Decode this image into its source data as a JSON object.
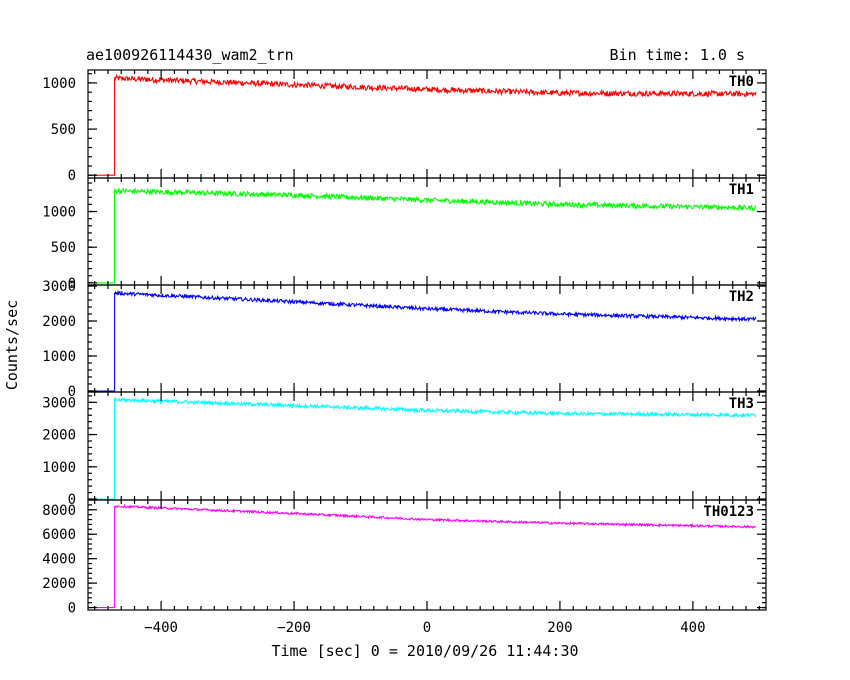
{
  "header": {
    "title": "ae100926114430_wam2_trn",
    "bin_time": "Bin time: 1.0 s"
  },
  "chart_data": {
    "type": "line",
    "title": "ae100926114430_wam2_trn",
    "subtitle": "Bin time: 1.0 s",
    "xlabel": "Time [sec] 0 = 2010/09/26 11:44:30",
    "ylabel": "Counts/sec",
    "xlim": [
      -510,
      510
    ],
    "xticks": [
      -400,
      -200,
      0,
      200,
      400
    ],
    "xtick_labels": [
      "−400",
      "−200",
      "0",
      "200",
      "400"
    ],
    "onset_x": -470,
    "series_x_end": 495,
    "panels": [
      {
        "name": "TH0",
        "color": "#ff0000",
        "ylim": [
          -30,
          1140
        ],
        "yticks": [
          0,
          500,
          1000
        ],
        "ytick_labels": [
          "0",
          "500",
          "1000"
        ],
        "pre_onset": 0,
        "points": [
          [
            -470,
            1050
          ],
          [
            -200,
            980
          ],
          [
            0,
            930
          ],
          [
            200,
            890
          ],
          [
            495,
            880
          ]
        ],
        "noise": 30
      },
      {
        "name": "TH1",
        "color": "#00ff00",
        "ylim": [
          -30,
          1470
        ],
        "yticks": [
          0,
          500,
          1000
        ],
        "ytick_labels": [
          "0",
          "500",
          "1000"
        ],
        "pre_onset": 0,
        "points": [
          [
            -470,
            1290
          ],
          [
            -200,
            1230
          ],
          [
            0,
            1160
          ],
          [
            200,
            1100
          ],
          [
            495,
            1050
          ]
        ],
        "noise": 35
      },
      {
        "name": "TH2",
        "color": "#0000ff",
        "ylim": [
          -30,
          3030
        ],
        "yticks": [
          0,
          1000,
          2000,
          3000
        ],
        "ytick_labels": [
          "0",
          "1000",
          "2000",
          "3000"
        ],
        "pre_onset": 0,
        "points": [
          [
            -470,
            2800
          ],
          [
            -200,
            2550
          ],
          [
            0,
            2350
          ],
          [
            200,
            2200
          ],
          [
            495,
            2050
          ]
        ],
        "noise": 50
      },
      {
        "name": "TH3",
        "color": "#00ffff",
        "ylim": [
          -30,
          3320
        ],
        "yticks": [
          0,
          1000,
          2000,
          3000
        ],
        "ytick_labels": [
          "0",
          "1000",
          "2000",
          "3000"
        ],
        "pre_onset": 0,
        "points": [
          [
            -470,
            3080
          ],
          [
            -200,
            2900
          ],
          [
            0,
            2750
          ],
          [
            200,
            2650
          ],
          [
            495,
            2600
          ]
        ],
        "noise": 55
      },
      {
        "name": "TH0123",
        "color": "#ff00ff",
        "ylim": [
          -200,
          8800
        ],
        "yticks": [
          0,
          2000,
          4000,
          6000,
          8000
        ],
        "ytick_labels": [
          "0",
          "2000",
          "4000",
          "6000",
          "8000"
        ],
        "pre_onset": 0,
        "points": [
          [
            -470,
            8300
          ],
          [
            -200,
            7700
          ],
          [
            0,
            7200
          ],
          [
            200,
            6900
          ],
          [
            495,
            6600
          ]
        ],
        "noise": 90
      }
    ]
  }
}
